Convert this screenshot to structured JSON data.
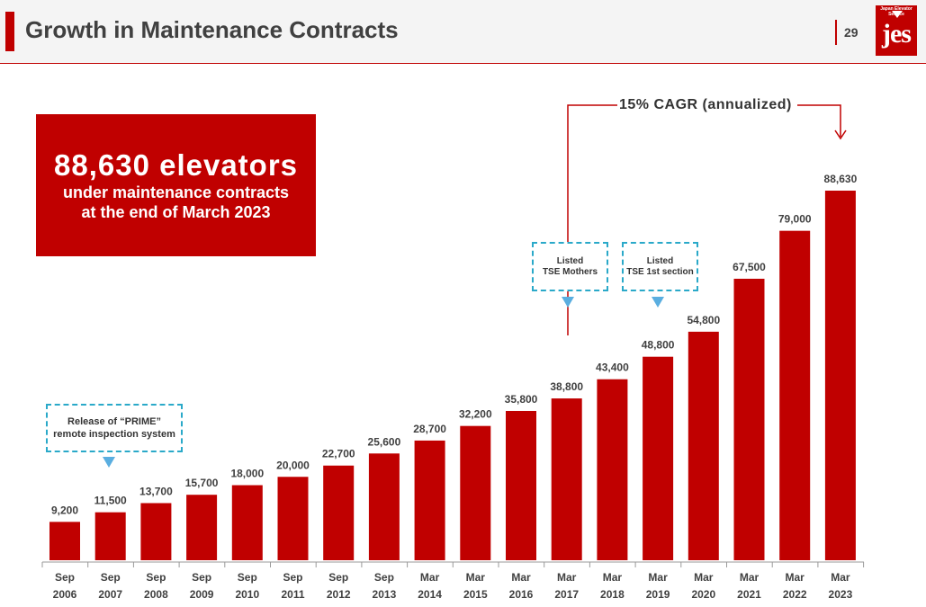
{
  "header": {
    "title": "Growth in Maintenance Contracts",
    "page_number": "29",
    "logo_text": "jes",
    "logo_tagline": "Japan Elevator Service"
  },
  "highlight": {
    "headline": "88,630 elevators",
    "line1": "under maintenance contracts",
    "line2": "at the end of March 2023"
  },
  "callouts": {
    "prime": [
      "Release of “PRIME”",
      "remote inspection system"
    ],
    "mothers": [
      "Listed",
      "TSE Mothers"
    ],
    "first_section": [
      "Listed",
      "TSE 1st section"
    ]
  },
  "cagr": "15% CAGR (annualized)",
  "colors": {
    "bar": "#c00000",
    "callout_border": "#2aa9c9",
    "arrow": "#5aaee0"
  },
  "chart_data": {
    "type": "bar",
    "categories": [
      [
        "Sep",
        "2006"
      ],
      [
        "Sep",
        "2007"
      ],
      [
        "Sep",
        "2008"
      ],
      [
        "Sep",
        "2009"
      ],
      [
        "Sep",
        "2010"
      ],
      [
        "Sep",
        "2011"
      ],
      [
        "Sep",
        "2012"
      ],
      [
        "Sep",
        "2013"
      ],
      [
        "Mar",
        "2014"
      ],
      [
        "Mar",
        "2015"
      ],
      [
        "Mar",
        "2016"
      ],
      [
        "Mar",
        "2017"
      ],
      [
        "Mar",
        "2018"
      ],
      [
        "Mar",
        "2019"
      ],
      [
        "Mar",
        "2020"
      ],
      [
        "Mar",
        "2021"
      ],
      [
        "Mar",
        "2022"
      ],
      [
        "Mar",
        "2023"
      ]
    ],
    "values": [
      9200,
      11500,
      13700,
      15700,
      18000,
      20000,
      22700,
      25600,
      28700,
      32200,
      35800,
      38800,
      43400,
      48800,
      54800,
      67500,
      79000,
      88630
    ],
    "value_labels": [
      "9,200",
      "11,500",
      "13,700",
      "15,700",
      "18,000",
      "20,000",
      "22,700",
      "25,600",
      "28,700",
      "32,200",
      "35,800",
      "38,800",
      "43,400",
      "48,800",
      "54,800",
      "67,500",
      "79,000",
      "88,630"
    ],
    "title": "",
    "xlabel": "",
    "ylabel": "",
    "ylim": [
      0,
      88630
    ],
    "grid": false,
    "legend": "none"
  }
}
